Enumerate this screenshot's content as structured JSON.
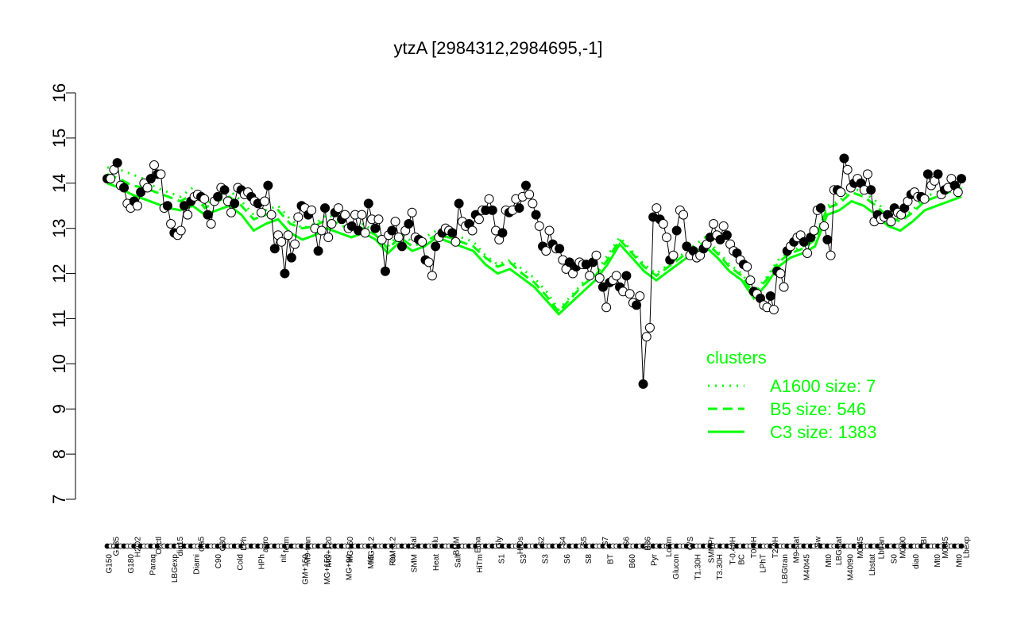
{
  "chart_data": {
    "type": "line",
    "title": "ytzA [2984312,2984695,-1]",
    "xlabel": "",
    "ylabel": "",
    "ylim": [
      7,
      16
    ],
    "yticks": [
      7,
      8,
      9,
      10,
      11,
      12,
      13,
      14,
      15,
      16
    ],
    "grid": false,
    "x_labels_top": [
      "G135",
      "H2O2",
      "Oxctl",
      "dia15",
      "dia5",
      "C30",
      "LPh",
      "aero",
      "ferm",
      "M9-tran",
      "MG+120",
      "MG+60",
      "MG-0.2",
      "GM-0.2",
      "Mal",
      "Glu",
      "BMM",
      "Etha",
      "Gly",
      "HiOs",
      "S2",
      "S4",
      "S5",
      "S7",
      "S6",
      "B36",
      "LoTm",
      "G/S",
      "SMMPr",
      "T-0.40H",
      "T0.0H",
      "T2.0H",
      "M9-stat",
      "Sw",
      "LBGstat",
      "M0t45",
      "Lbtran",
      "M0t90",
      "BI",
      "M0t45",
      "Lbexp"
    ],
    "x_labels_bottom": [
      "G150",
      "G180",
      "Paraq",
      "LBGexp",
      "Diami",
      "C90",
      "Cold",
      "HPh",
      "nit",
      "GM+150",
      "MG+150",
      "MG+90",
      "M/G",
      "Fru",
      "SMM",
      "Heat",
      "Salt",
      "HiTm",
      "S1",
      "S3",
      "S3",
      "S6",
      "S8",
      "BT",
      "B60",
      "Pyr",
      "Glucon",
      "T1.30H",
      "T3.30H",
      "BC",
      "LPhT",
      "LBGtran",
      "M40t45",
      "Mt0",
      "M40t90",
      "Lbstat",
      "S0",
      "dia0",
      "Mt0",
      "Mt0"
    ],
    "series": [
      {
        "name": "",
        "role": "expression points",
        "y": [
          14.1,
          14.1,
          14.3,
          14.45,
          13.95,
          13.9,
          13.55,
          13.45,
          13.6,
          13.5,
          13.8,
          14.0,
          13.9,
          14.1,
          14.4,
          14.2,
          14.2,
          13.45,
          13.5,
          13.1,
          12.9,
          12.85,
          12.95,
          13.5,
          13.3,
          13.6,
          13.7,
          13.75,
          13.7,
          13.65,
          13.3,
          13.1,
          13.6,
          13.7,
          13.9,
          13.85,
          13.6,
          13.35,
          13.55,
          13.9,
          13.85,
          13.75,
          13.8,
          13.7,
          13.6,
          13.55,
          13.35,
          13.6,
          13.95,
          13.3,
          12.55,
          12.85,
          12.7,
          12.0,
          12.85,
          12.35,
          12.65,
          13.25,
          13.5,
          13.45,
          13.3,
          13.4,
          13.0,
          12.5,
          12.95,
          13.45,
          12.8,
          13.1,
          13.35,
          13.45,
          13.2,
          13.3,
          13.0,
          13.05,
          13.3,
          12.95,
          13.3,
          12.9,
          13.55,
          13.2,
          13.0,
          13.2,
          12.75,
          12.05,
          12.85,
          12.95,
          13.15,
          12.8,
          12.6,
          12.95,
          13.1,
          13.35,
          12.8,
          12.75,
          12.7,
          12.3,
          12.25,
          11.95,
          12.6,
          12.8,
          12.9,
          13.0,
          12.95,
          12.9,
          12.7,
          13.55,
          13.15,
          13.05,
          13.1,
          12.95,
          13.3,
          13.2,
          13.4,
          13.4,
          13.65,
          13.4,
          12.95,
          12.75,
          12.9,
          13.4,
          13.35,
          13.4,
          13.65,
          13.45,
          13.7,
          13.95,
          13.75,
          13.55,
          13.3,
          13.05,
          12.6,
          12.5,
          12.95,
          12.65,
          12.55,
          12.55,
          12.3,
          12.1,
          12.25,
          12.0,
          12.15,
          12.25,
          12.2,
          12.2,
          11.95,
          12.25,
          12.4,
          11.9,
          11.7,
          11.25,
          11.8,
          11.85,
          11.95,
          11.7,
          11.6,
          11.95,
          11.55,
          11.35,
          11.3,
          11.5,
          9.55,
          10.6,
          10.8,
          13.25,
          13.45,
          13.2,
          13.1,
          12.8,
          12.3,
          12.4,
          12.95,
          13.4,
          13.3,
          12.6,
          12.4,
          12.5,
          12.35,
          12.4,
          12.55,
          12.65,
          12.8,
          13.1,
          12.85,
          12.75,
          13.05,
          12.85,
          12.65,
          12.5,
          12.45,
          12.3,
          12.2,
          12.15,
          11.85,
          11.6,
          11.55,
          11.45,
          11.3,
          11.25,
          11.5,
          11.2,
          12.05,
          12.0,
          11.7,
          12.5,
          12.6,
          12.7,
          12.8,
          12.85,
          12.7,
          12.45,
          12.8,
          12.95,
          13.4,
          13.45,
          13.05,
          12.75,
          12.4,
          13.85,
          13.85,
          13.8,
          14.55,
          14.3,
          13.9,
          14.0,
          14.1,
          14.0,
          13.85,
          14.2,
          13.85,
          13.15,
          13.3,
          13.2,
          13.25,
          13.3,
          13.15,
          13.45,
          13.35,
          13.3,
          13.45,
          13.6,
          13.75,
          13.8,
          13.7,
          13.7,
          13.65,
          14.2,
          13.95,
          14.05,
          14.2,
          13.75,
          13.85,
          13.9,
          14.1,
          13.95,
          13.8,
          14.1
        ]
      },
      {
        "name": "A1600 size: 7",
        "role": "cluster profile",
        "y": [
          14.35,
          14.3,
          14.2,
          14.1,
          13.9,
          13.8,
          13.7,
          13.9,
          13.5,
          13.7,
          13.85,
          13.6,
          13.3,
          13.4,
          13.5,
          13.2,
          13.0,
          13.1,
          13.3,
          13.2,
          13.0,
          13.1,
          12.9,
          12.6,
          12.9,
          12.7,
          12.8,
          12.95,
          12.9,
          12.8,
          12.7,
          12.4,
          12.2,
          12.3,
          12.1,
          11.9,
          11.6,
          11.2,
          11.5,
          11.8,
          12.0,
          12.4,
          12.8,
          12.5,
          12.2,
          12.0,
          12.2,
          12.4,
          12.6,
          12.8,
          12.5,
          12.2,
          12.0,
          11.6,
          11.9,
          12.3,
          12.5,
          12.6,
          12.8,
          13.5,
          13.6,
          13.9,
          13.8,
          13.6,
          13.3,
          13.2,
          13.4,
          13.7,
          13.8,
          13.9,
          14.0
        ]
      },
      {
        "name": "B5 size: 546",
        "role": "cluster profile",
        "y": [
          14.2,
          14.1,
          13.95,
          13.9,
          13.8,
          13.7,
          13.6,
          13.75,
          13.45,
          13.6,
          13.7,
          13.5,
          13.2,
          13.3,
          13.4,
          13.1,
          13.0,
          13.05,
          13.2,
          13.1,
          12.95,
          13.0,
          12.85,
          12.55,
          12.8,
          12.6,
          12.7,
          12.85,
          12.8,
          12.7,
          12.6,
          12.35,
          12.15,
          12.25,
          12.0,
          11.8,
          11.5,
          11.15,
          11.45,
          11.75,
          11.95,
          12.3,
          12.75,
          12.45,
          12.15,
          11.95,
          12.15,
          12.35,
          12.55,
          12.7,
          12.45,
          12.15,
          11.95,
          11.55,
          11.85,
          12.25,
          12.45,
          12.55,
          12.75,
          13.45,
          13.55,
          13.8,
          13.7,
          13.5,
          13.25,
          13.15,
          13.35,
          13.6,
          13.7,
          13.8,
          13.9
        ]
      },
      {
        "name": "C3 size: 1383",
        "role": "cluster profile",
        "y": [
          14.0,
          13.9,
          13.75,
          13.65,
          13.55,
          13.45,
          13.4,
          13.5,
          13.3,
          13.4,
          13.5,
          13.3,
          12.95,
          13.1,
          13.2,
          12.9,
          12.75,
          12.85,
          13.0,
          12.9,
          12.8,
          12.9,
          12.75,
          12.45,
          12.7,
          12.5,
          12.6,
          12.8,
          12.7,
          12.6,
          12.5,
          12.2,
          12.0,
          12.1,
          11.9,
          11.7,
          11.4,
          11.1,
          11.35,
          11.6,
          11.85,
          12.2,
          12.65,
          12.35,
          12.05,
          11.85,
          12.05,
          12.25,
          12.45,
          12.6,
          12.35,
          12.05,
          11.85,
          11.45,
          11.75,
          12.15,
          12.35,
          12.45,
          12.6,
          13.3,
          13.4,
          13.6,
          13.5,
          13.3,
          13.05,
          12.95,
          13.15,
          13.4,
          13.5,
          13.6,
          13.7
        ]
      }
    ],
    "legend": {
      "title": "clusters",
      "position": "bottom-right",
      "entries": [
        "A1600 size: 7",
        "B5 size: 546",
        "C3 size: 1383"
      ]
    },
    "colors": {
      "cluster_line": "#00ff00",
      "point_fill_dark": "#000000",
      "point_fill_light": "#ffffff",
      "axis": "#000000"
    }
  }
}
